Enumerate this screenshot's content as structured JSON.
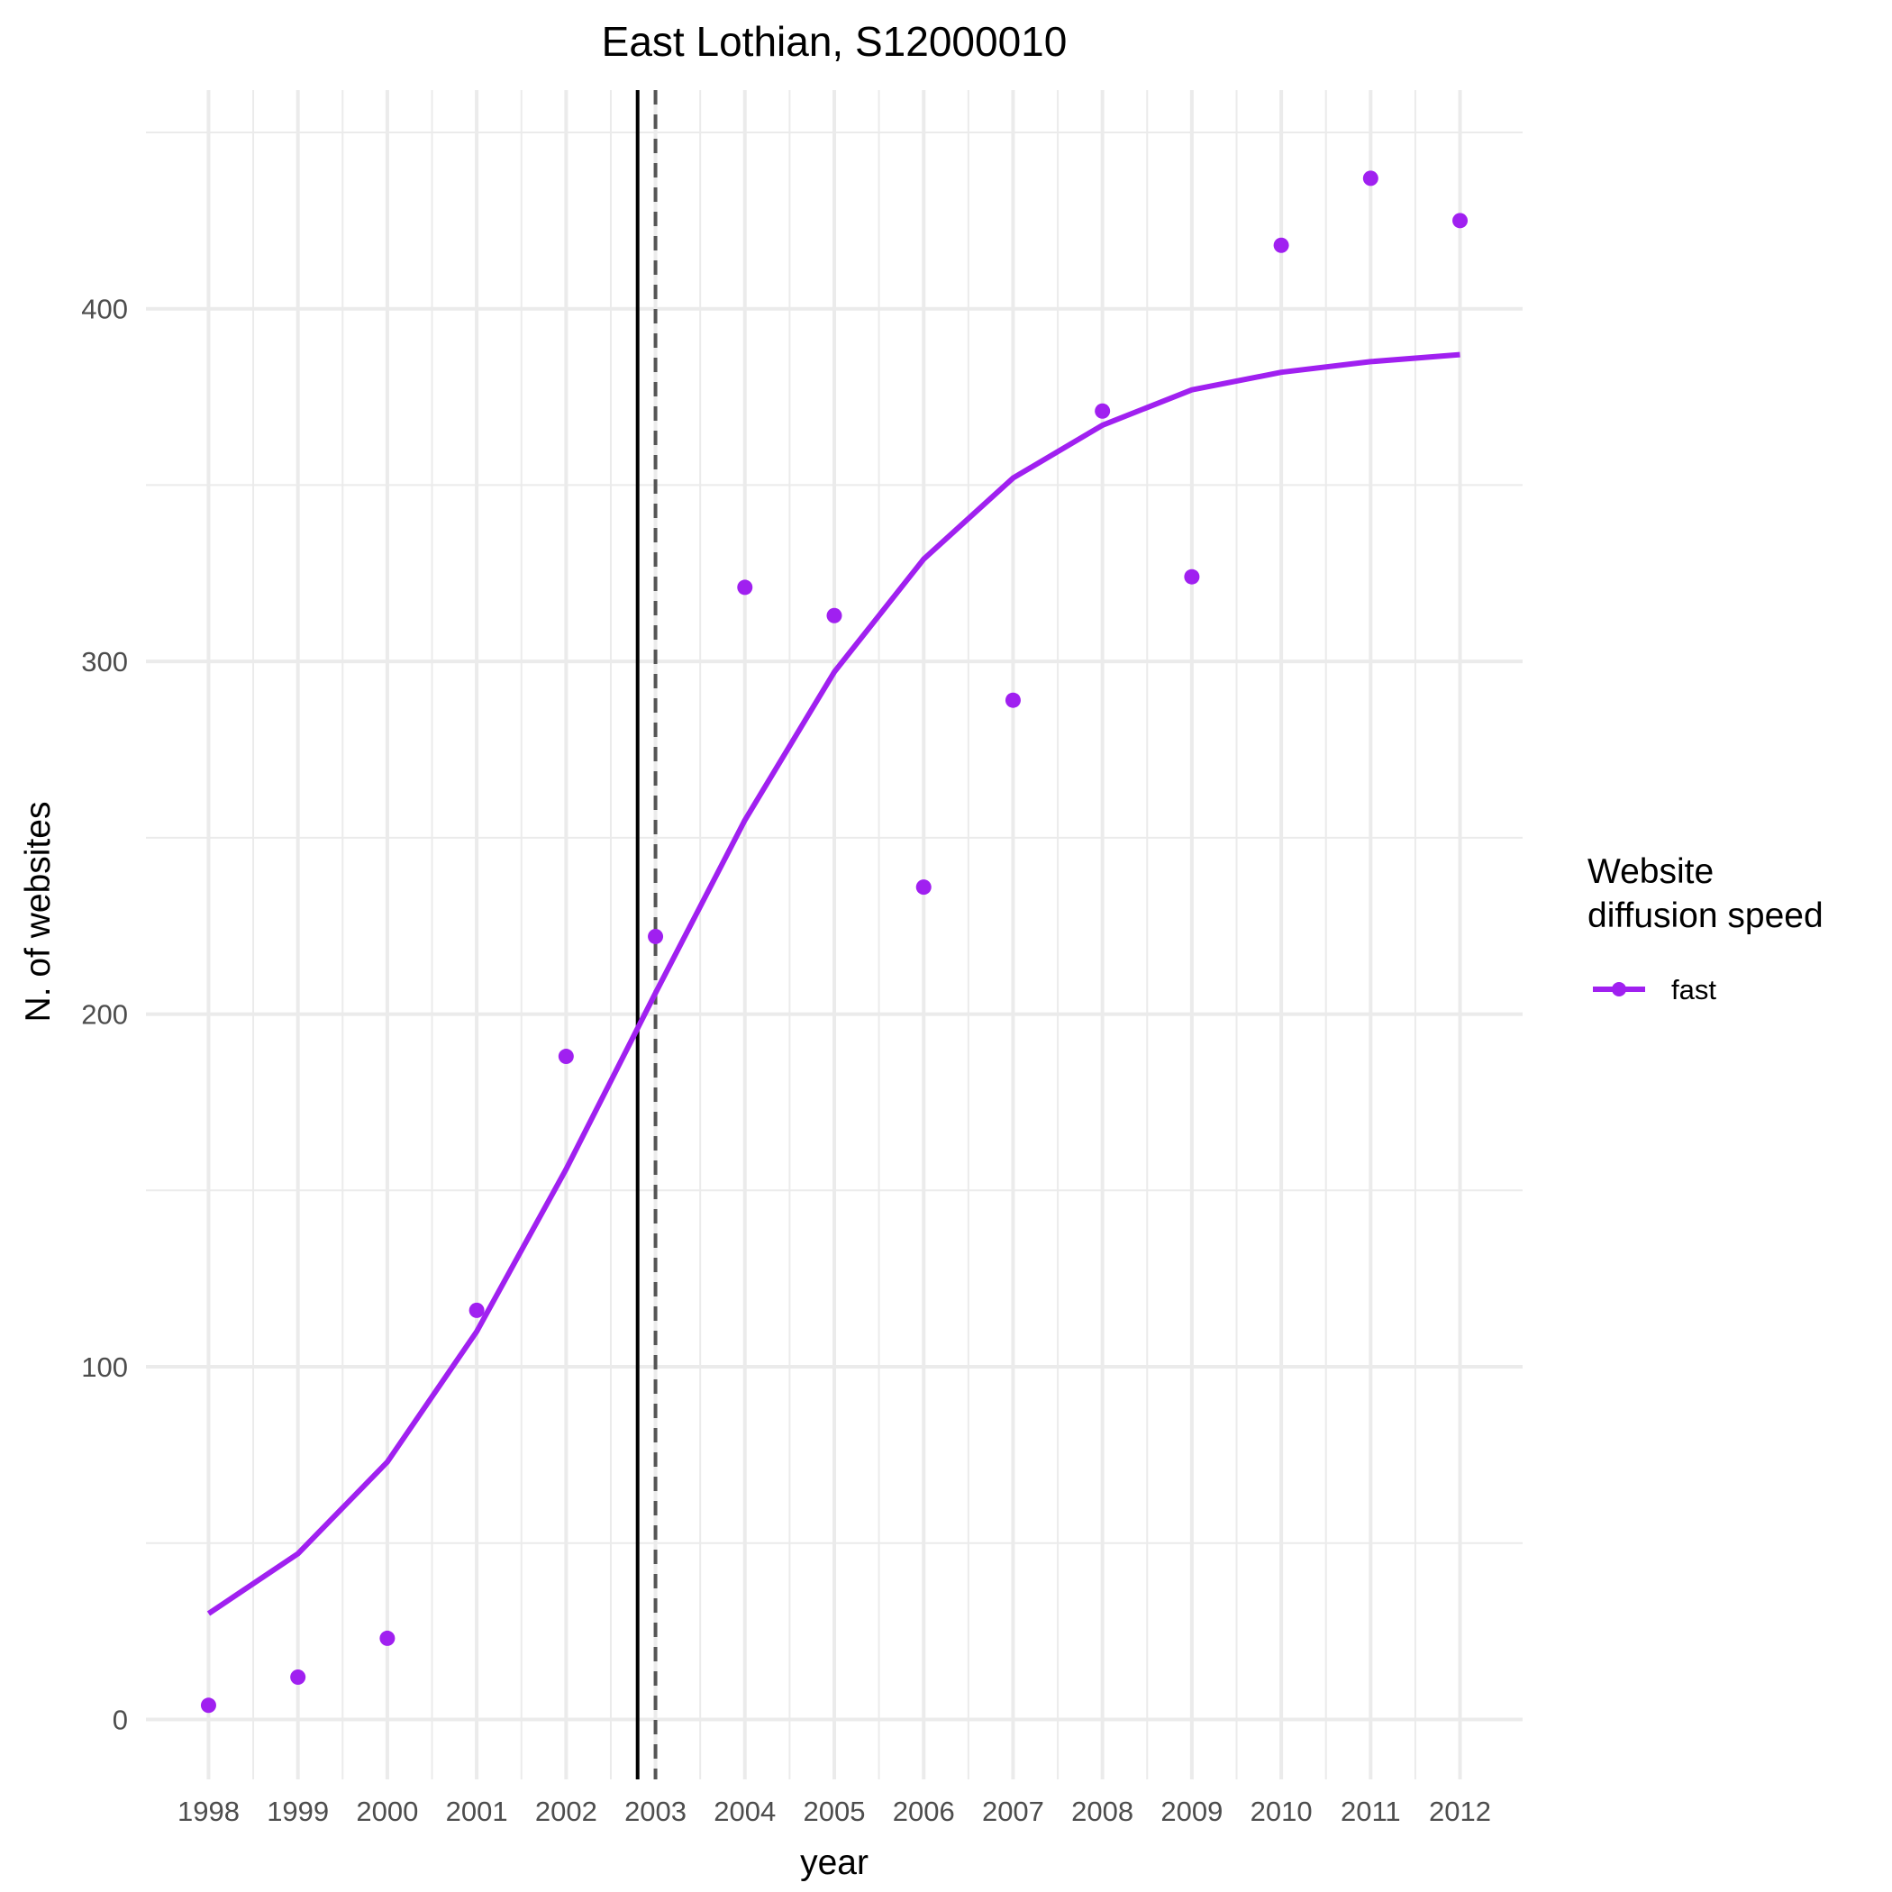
{
  "chart_data": {
    "type": "line",
    "title": "East Lothian, S12000010",
    "xlabel": "year",
    "ylabel": "N. of websites",
    "x_ticks": [
      "1998",
      "1999",
      "2000",
      "2001",
      "2002",
      "2003",
      "2004",
      "2005",
      "2006",
      "2007",
      "2008",
      "2009",
      "2010",
      "2011",
      "2012"
    ],
    "y_ticks": [
      "0",
      "100",
      "200",
      "300",
      "400"
    ],
    "xlim": [
      1997.3,
      2012.7
    ],
    "ylim": [
      -17,
      462
    ],
    "grid": true,
    "legend": {
      "title_lines": [
        "Website",
        "diffusion speed"
      ],
      "position": "right",
      "entries": [
        "fast"
      ]
    },
    "series": [
      {
        "name": "fast",
        "color": "#a020f0",
        "points_x": [
          1998,
          1999,
          2000,
          2001,
          2002,
          2003,
          2004,
          2005,
          2006,
          2007,
          2008,
          2009,
          2010,
          2011,
          2012
        ],
        "points_y": [
          4,
          12,
          23,
          116,
          188,
          222,
          321,
          313,
          236,
          289,
          371,
          324,
          418,
          437,
          425
        ],
        "fit_x": [
          1998,
          1999,
          2000,
          2001,
          2002,
          2003,
          2004,
          2005,
          2006,
          2007,
          2008,
          2009,
          2010,
          2011,
          2012
        ],
        "fit_y": [
          30,
          47,
          73,
          110,
          156,
          206,
          255,
          297,
          329,
          352,
          367,
          377,
          382,
          385,
          387
        ]
      }
    ],
    "vlines": [
      {
        "x": 2002.8,
        "style": "solid",
        "color": "#000000"
      },
      {
        "x": 2003.0,
        "style": "dashed",
        "color": "#555555"
      }
    ]
  }
}
